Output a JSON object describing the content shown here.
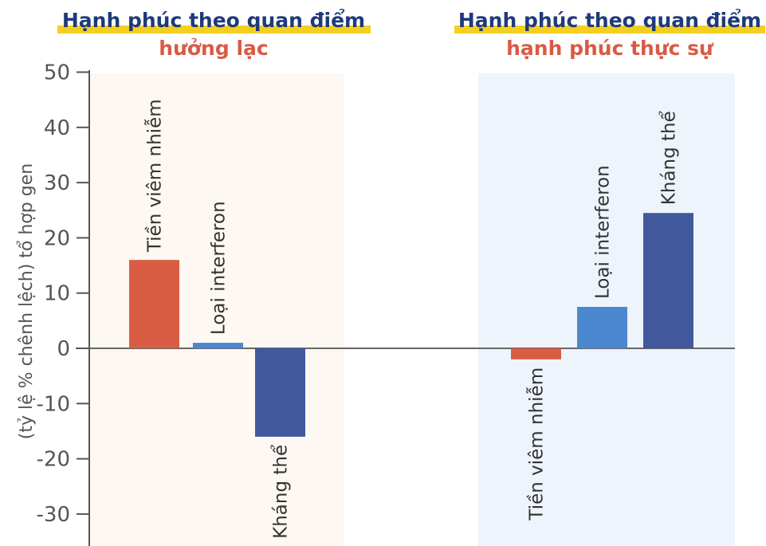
{
  "chart_data": {
    "type": "bar",
    "ylabel": "(tỷ lệ % chênh lệch) tổ hợp gen",
    "ylim": [
      -35,
      50
    ],
    "yticks": [
      50,
      40,
      30,
      20,
      10,
      0,
      -10,
      -20,
      -30
    ],
    "grid": false,
    "panels": [
      {
        "title_line1": "Hạnh phúc theo quan điểm",
        "title_line2": "hưởng lạc",
        "background": "#fdf8f2",
        "bars": [
          {
            "label": "Tiền viêm nhiễm",
            "value": 16,
            "color": "#d95d45"
          },
          {
            "label": "Loại interferon",
            "value": 1,
            "color": "#4a87cf"
          },
          {
            "label": "Kháng thể",
            "value": -16,
            "color": "#41589d"
          }
        ]
      },
      {
        "title_line1": "Hạnh phúc theo quan điểm",
        "title_line2": "hạnh phúc thực sự",
        "background": "#eef4fb",
        "bars": [
          {
            "label": "Tiền viêm nhiễm",
            "value": -2,
            "color": "#d95d45"
          },
          {
            "label": "Loại interferon",
            "value": 7.5,
            "color": "#4a87cf"
          },
          {
            "label": "Kháng thể",
            "value": 24.5,
            "color": "#41589d"
          }
        ]
      }
    ],
    "colors": {
      "highlight": "#f4cf22",
      "title_main": "#1f3a7a",
      "title_sub": "#d95a44",
      "axis": "#555555"
    }
  }
}
